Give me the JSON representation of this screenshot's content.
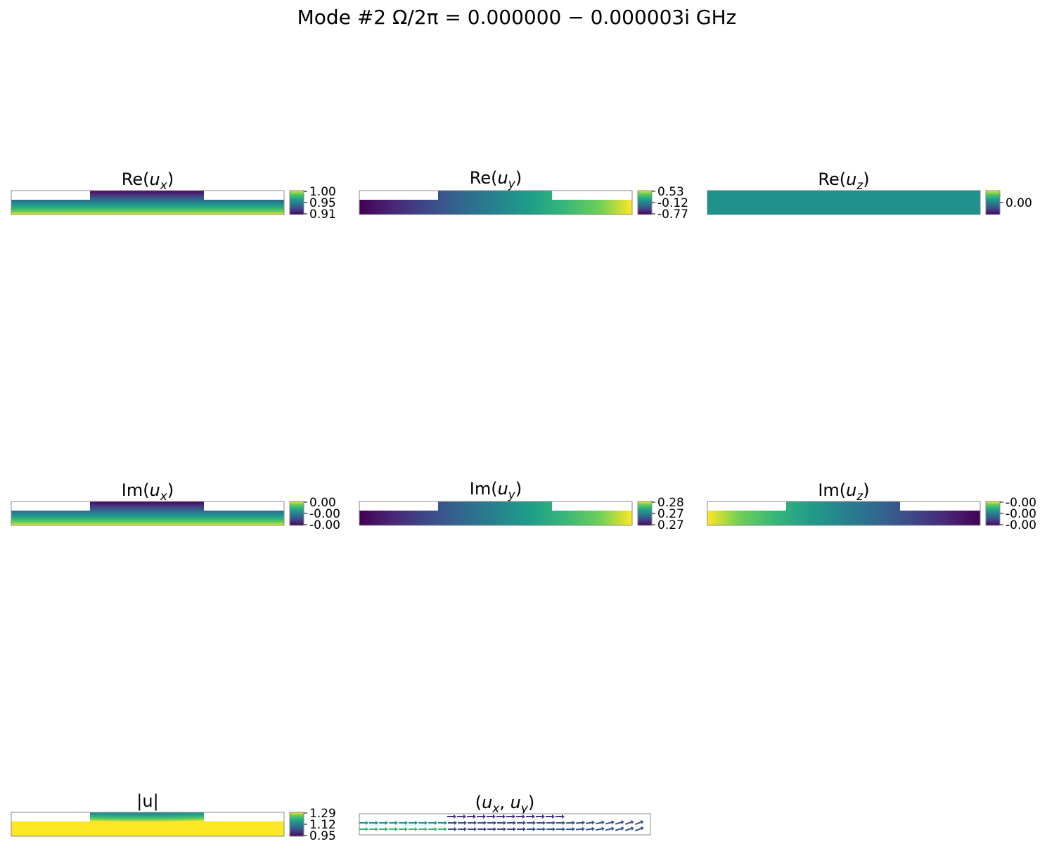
{
  "chart_data": {
    "type": "heatmap",
    "title": "Mode #2   Ω/2π = 0.000000 − 0.000003i GHz",
    "colormap": "viridis",
    "domain_shape": "slab with raised central rib (rib spans middle portion of width)",
    "panels": [
      {
        "id": "re-ux",
        "title": "Re(u_x)",
        "title_main": "Re(",
        "title_sub": "x",
        "title_end": ")",
        "field": "Re(u_x)",
        "colorbar_ticks": [
          "1.00",
          "0.95",
          "0.91"
        ],
        "range": [
          0.91,
          1.0
        ],
        "pattern": "gradient along y: low (0.91) at top of rib, high (1.00) at bottom of slab"
      },
      {
        "id": "re-uy",
        "title": "Re(u_y)",
        "title_main": "Re(",
        "title_sub": "y",
        "title_end": ")",
        "field": "Re(u_y)",
        "colorbar_ticks": [
          "0.53",
          "-0.12",
          "-0.77"
        ],
        "range": [
          -0.77,
          0.53
        ],
        "pattern": "gradient along x: low (-0.77) at left, high (0.53) at right"
      },
      {
        "id": "re-uz",
        "title": "Re(u_z)",
        "title_main": "Re(",
        "title_sub": "z",
        "title_end": ")",
        "field": "Re(u_z)",
        "colorbar_ticks": [
          "0.00"
        ],
        "range": [
          0.0,
          0.0
        ],
        "pattern": "uniform 0.00"
      },
      {
        "id": "im-ux",
        "title": "Im(u_x)",
        "title_main": "Im(",
        "title_sub": "x",
        "title_end": ")",
        "field": "Im(u_x)",
        "colorbar_ticks": [
          "0.00",
          "-0.00",
          "-0.00"
        ],
        "range": [
          -0.0,
          0.0
        ],
        "pattern": "gradient along y: low at top, high at bottom"
      },
      {
        "id": "im-uy",
        "title": "Im(u_y)",
        "title_main": "Im(",
        "title_sub": "y",
        "title_end": ")",
        "field": "Im(u_y)",
        "colorbar_ticks": [
          "0.28",
          "0.27",
          "0.27"
        ],
        "range": [
          0.27,
          0.28
        ],
        "pattern": "gradient along x: low at left, high at right"
      },
      {
        "id": "im-uz",
        "title": "Im(u_z)",
        "title_main": "Im(",
        "title_sub": "z",
        "title_end": ")",
        "field": "Im(u_z)",
        "colorbar_ticks": [
          "-0.00",
          "-0.00",
          "-0.00"
        ],
        "range": [
          -0.0,
          -0.0
        ],
        "pattern": "gradient along x: high at left, low at right"
      },
      {
        "id": "abs-u",
        "title": "|u|",
        "title_main": "|u|",
        "title_sub": "",
        "title_end": "",
        "field": "|u|",
        "colorbar_ticks": [
          "1.29",
          "1.12",
          "0.95"
        ],
        "range": [
          0.95,
          1.29
        ],
        "pattern": "low (0.95) at top of rib, high (1.29) at bottom-left corner"
      },
      {
        "id": "quiver",
        "title": "(u_x, u_y)",
        "title_main": "(u",
        "title_sub": "x",
        "title_mid": ", u",
        "title_sub2": "y",
        "title_end": ")",
        "field": "(u_x,u_y)",
        "type": "quiver",
        "pattern": "arrows pointing mostly +x, tilting upward toward the right; colored by magnitude"
      }
    ]
  }
}
